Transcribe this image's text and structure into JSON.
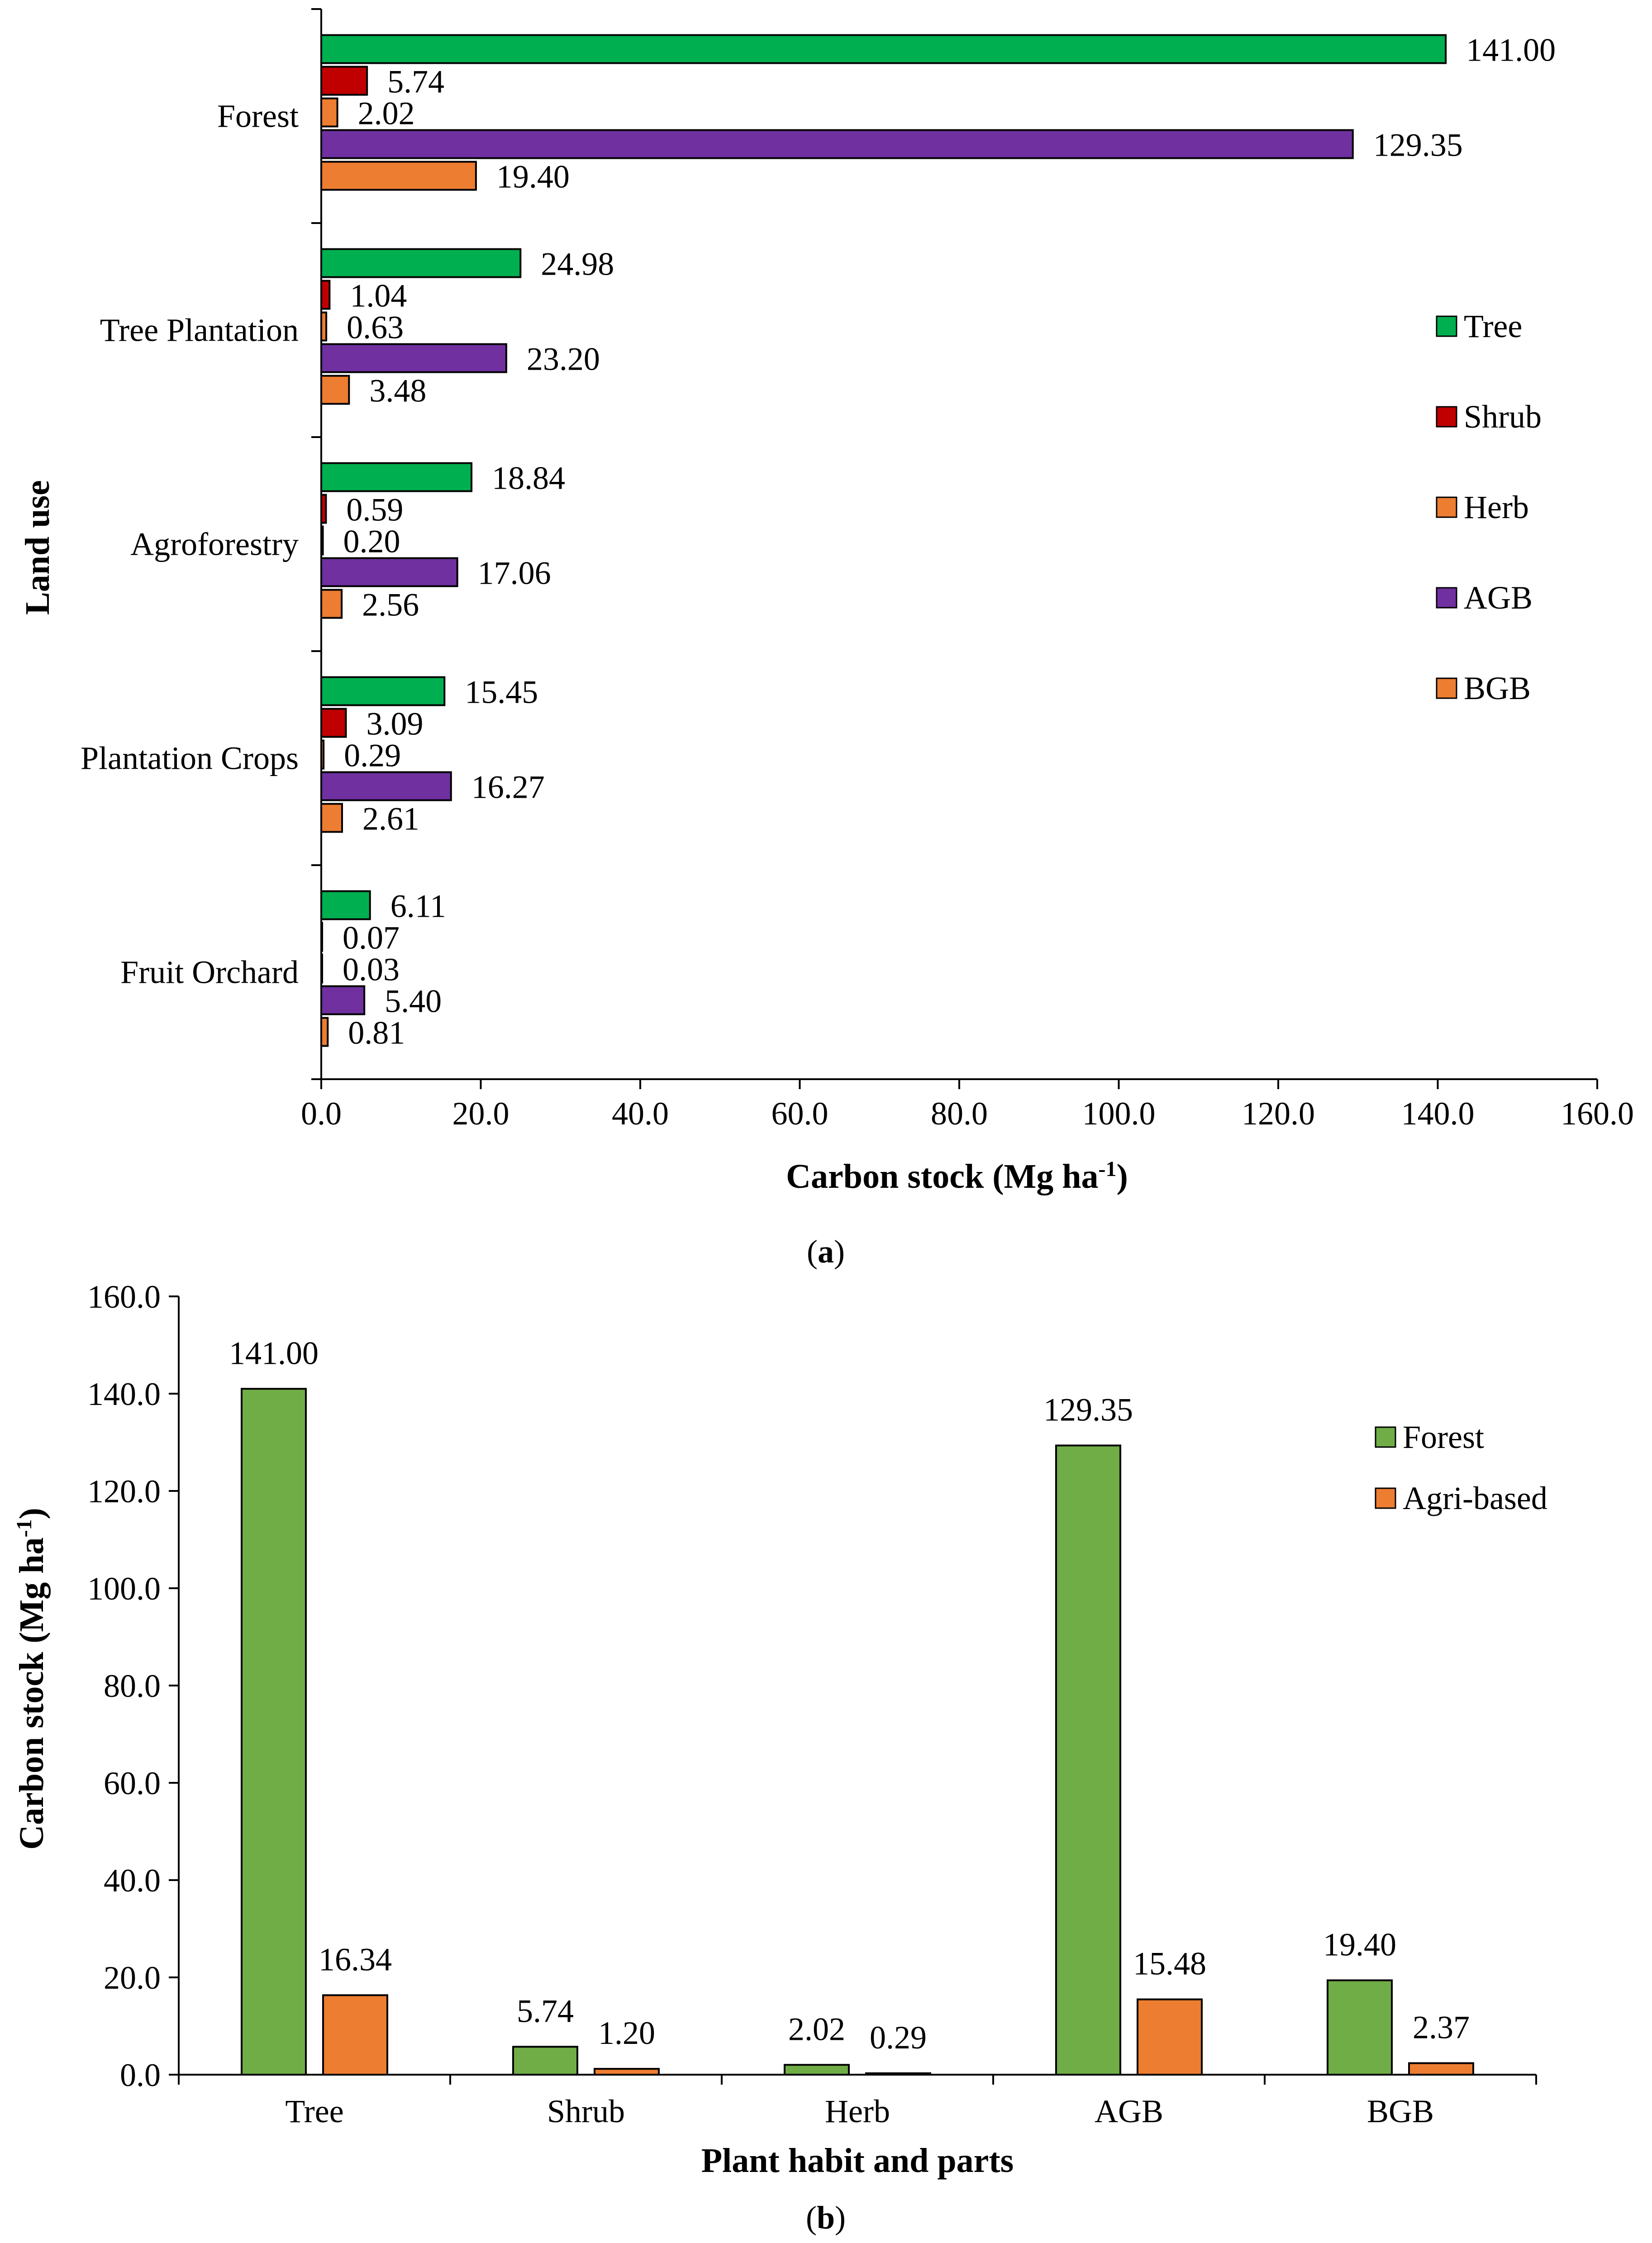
{
  "chart_data": [
    {
      "type": "bar",
      "orientation": "horizontal",
      "panel_label": "a",
      "categories": [
        "Forest",
        "Tree Plantation",
        "Agroforestry",
        "Plantation Crops",
        "Fruit Orchard"
      ],
      "series": [
        {
          "name": "Tree",
          "color": "#00b050",
          "values": [
            141.0,
            24.98,
            18.84,
            15.45,
            6.11
          ],
          "labels": [
            "141.00",
            "24.98",
            "18.84",
            "15.45",
            "6.11"
          ]
        },
        {
          "name": "Shrub",
          "color": "#c00000",
          "values": [
            5.74,
            1.04,
            0.59,
            3.09,
            0.07
          ],
          "labels": [
            "5.74",
            "1.04",
            "0.59",
            "3.09",
            "0.07"
          ]
        },
        {
          "name": "Herb",
          "color": "#ed7d31",
          "values": [
            2.02,
            0.63,
            0.2,
            0.29,
            0.03
          ],
          "labels": [
            "2.02",
            "0.63",
            "0.20",
            "0.29",
            "0.03"
          ]
        },
        {
          "name": "AGB",
          "color": "#7030a0",
          "values": [
            129.35,
            23.2,
            17.06,
            16.27,
            5.4
          ],
          "labels": [
            "129.35",
            "23.20",
            "17.06",
            "16.27",
            "5.40"
          ]
        },
        {
          "name": "BGB",
          "color": "#ed7d31",
          "values": [
            19.4,
            3.48,
            2.56,
            2.61,
            0.81
          ],
          "labels": [
            "19.40",
            "3.48",
            "2.56",
            "2.61",
            "0.81"
          ]
        }
      ],
      "xlabel_main": "Carbon stock (Mg ha",
      "xlabel_sup": "-1",
      "xlabel_end": ")",
      "ylabel": "Land use",
      "xlim": [
        0,
        160
      ],
      "xticks": [
        "0.0",
        "20.0",
        "40.0",
        "60.0",
        "80.0",
        "100.0",
        "120.0",
        "140.0",
        "160.0"
      ],
      "grid": false,
      "legend": "right"
    },
    {
      "type": "bar",
      "orientation": "vertical",
      "panel_label": "b",
      "categories": [
        "Tree",
        "Shrub",
        "Herb",
        "AGB",
        "BGB"
      ],
      "series": [
        {
          "name": "Forest",
          "color": "#70ad47",
          "values": [
            141.0,
            5.74,
            2.02,
            129.35,
            19.4
          ],
          "labels": [
            "141.00",
            "5.74",
            "2.02",
            "129.35",
            "19.40"
          ]
        },
        {
          "name": "Agri-based",
          "color": "#ed7d31",
          "values": [
            16.34,
            1.2,
            0.29,
            15.48,
            2.37
          ],
          "labels": [
            "16.34",
            "1.20",
            "0.29",
            "15.48",
            "2.37"
          ]
        }
      ],
      "xlabel": "Plant habit and parts",
      "ylabel_main": "Carbon stock (Mg ha",
      "ylabel_sup": "-1",
      "ylabel_end": ")",
      "ylim": [
        0,
        160
      ],
      "yticks": [
        "0.0",
        "20.0",
        "40.0",
        "60.0",
        "80.0",
        "100.0",
        "120.0",
        "140.0",
        "160.0"
      ],
      "grid": false,
      "legend": "top-right"
    }
  ]
}
